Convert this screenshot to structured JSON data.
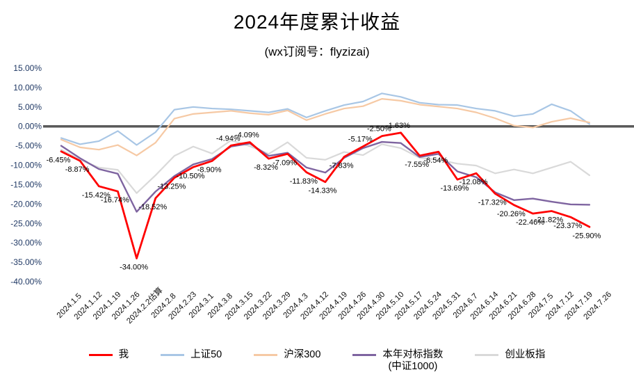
{
  "chart_data": {
    "type": "line",
    "title": "2024年度累计收益",
    "subtitle": "(wx订阅号：flyzizai)",
    "grid": false,
    "legend_position": "bottom",
    "ylim": [
      -40,
      15
    ],
    "y_ticks": [
      "15.00%",
      "10.00%",
      "5.00%",
      "0.00%",
      "-5.00%",
      "-10.00%",
      "-15.00%",
      "-20.00%",
      "-25.00%",
      "-30.00%",
      "-35.00%",
      "-40.00%"
    ],
    "zero_line_color": "#595959",
    "x": [
      "2024.1.5",
      "2024.1.12",
      "2024.1.19",
      "2024.1.26",
      "2024.2.2估算",
      "2024.2.8",
      "2024.2.23",
      "2024.3.1",
      "2024.3.8",
      "2024.3.15",
      "2024.3.22",
      "2024.3.29",
      "2024.4.3",
      "2024.4.12",
      "2024.4.19",
      "2024.4.26",
      "2024.4.30",
      "2024.5.10",
      "2024.5.17",
      "2024.5.24",
      "2024.5.31",
      "2024.6.7",
      "2024.6.14",
      "2024.6.21",
      "2024.6.28",
      "2024.7.5",
      "2024.7.12",
      "2024.7.19",
      "2024.7.26"
    ],
    "series": [
      {
        "id": "me",
        "name": "我",
        "color": "#ff0000",
        "width": 2.8,
        "values": [
          -6.45,
          -8.87,
          -15.42,
          -16.74,
          -34.0,
          -18.52,
          -13.25,
          -10.5,
          -8.9,
          -4.94,
          -4.09,
          -8.32,
          -7.09,
          -11.83,
          -14.33,
          -7.83,
          -5.17,
          -2.5,
          -1.63,
          -7.55,
          -6.54,
          -13.69,
          -12.08,
          -17.32,
          -20.26,
          -22.46,
          -21.82,
          -23.37,
          -25.9
        ],
        "labels": [
          "-6.45%",
          "-8.87%",
          "-15.42%",
          "-16.74%",
          "-34.00%",
          "-18.52%",
          "-13.25%",
          "-10.50%",
          "-8.90%",
          "-4.94%",
          "-4.09%",
          "-8.32%",
          "-7.09%",
          "-11.83%",
          "-14.33%",
          "-7.83%",
          "-5.17%",
          "-2.50%",
          "-1.63%",
          "-7.55%",
          "-6.54%",
          "-13.69%",
          "-12.08%",
          "-17.32%",
          "-20.26%",
          "-22.46%",
          "-21.82%",
          "-23.37%",
          "-25.90%"
        ]
      },
      {
        "id": "sse50",
        "name": "上证50",
        "color": "#a8c6e5",
        "width": 2.2,
        "values": [
          -3.0,
          -4.6,
          -3.8,
          -1.2,
          -4.8,
          -1.5,
          4.3,
          5.0,
          4.6,
          4.4,
          4.0,
          3.6,
          4.5,
          2.3,
          4.0,
          5.5,
          6.4,
          8.5,
          7.6,
          6.1,
          5.6,
          5.5,
          4.6,
          4.0,
          2.6,
          3.2,
          5.7,
          4.0,
          0.6
        ]
      },
      {
        "id": "csi300",
        "name": "沪深300",
        "color": "#f6c9a4",
        "width": 2.2,
        "values": [
          -3.4,
          -5.4,
          -6.0,
          -4.8,
          -7.5,
          -4.2,
          2.0,
          3.2,
          3.6,
          4.0,
          3.4,
          3.0,
          4.1,
          1.6,
          3.2,
          4.6,
          5.2,
          7.1,
          6.6,
          5.6,
          5.1,
          4.6,
          3.6,
          2.1,
          0.2,
          -0.3,
          1.2,
          2.1,
          1.0
        ]
      },
      {
        "id": "benchmark-csi1000",
        "name": "本年对标指数",
        "name2": "(中证1000)",
        "color": "#7e64a0",
        "width": 2.4,
        "values": [
          -5.0,
          -8.2,
          -11.0,
          -12.2,
          -22.0,
          -16.8,
          -12.8,
          -9.8,
          -8.4,
          -5.2,
          -4.4,
          -7.6,
          -6.8,
          -10.6,
          -11.9,
          -8.1,
          -5.6,
          -4.0,
          -4.3,
          -7.9,
          -7.1,
          -11.6,
          -13.1,
          -17.0,
          -19.0,
          -18.6,
          -19.4,
          -20.1,
          -20.2
        ]
      },
      {
        "id": "chinext",
        "name": "创业板指",
        "color": "#d9d9d9",
        "width": 2.2,
        "values": [
          -6.0,
          -8.6,
          -10.6,
          -11.2,
          -17.2,
          -12.6,
          -7.6,
          -5.2,
          -7.0,
          -3.6,
          -5.1,
          -7.1,
          -4.1,
          -8.1,
          -8.6,
          -6.6,
          -7.4,
          -4.6,
          -5.6,
          -8.1,
          -8.6,
          -9.6,
          -10.1,
          -12.1,
          -11.1,
          -12.1,
          -10.6,
          -9.1,
          -12.6
        ]
      }
    ]
  }
}
